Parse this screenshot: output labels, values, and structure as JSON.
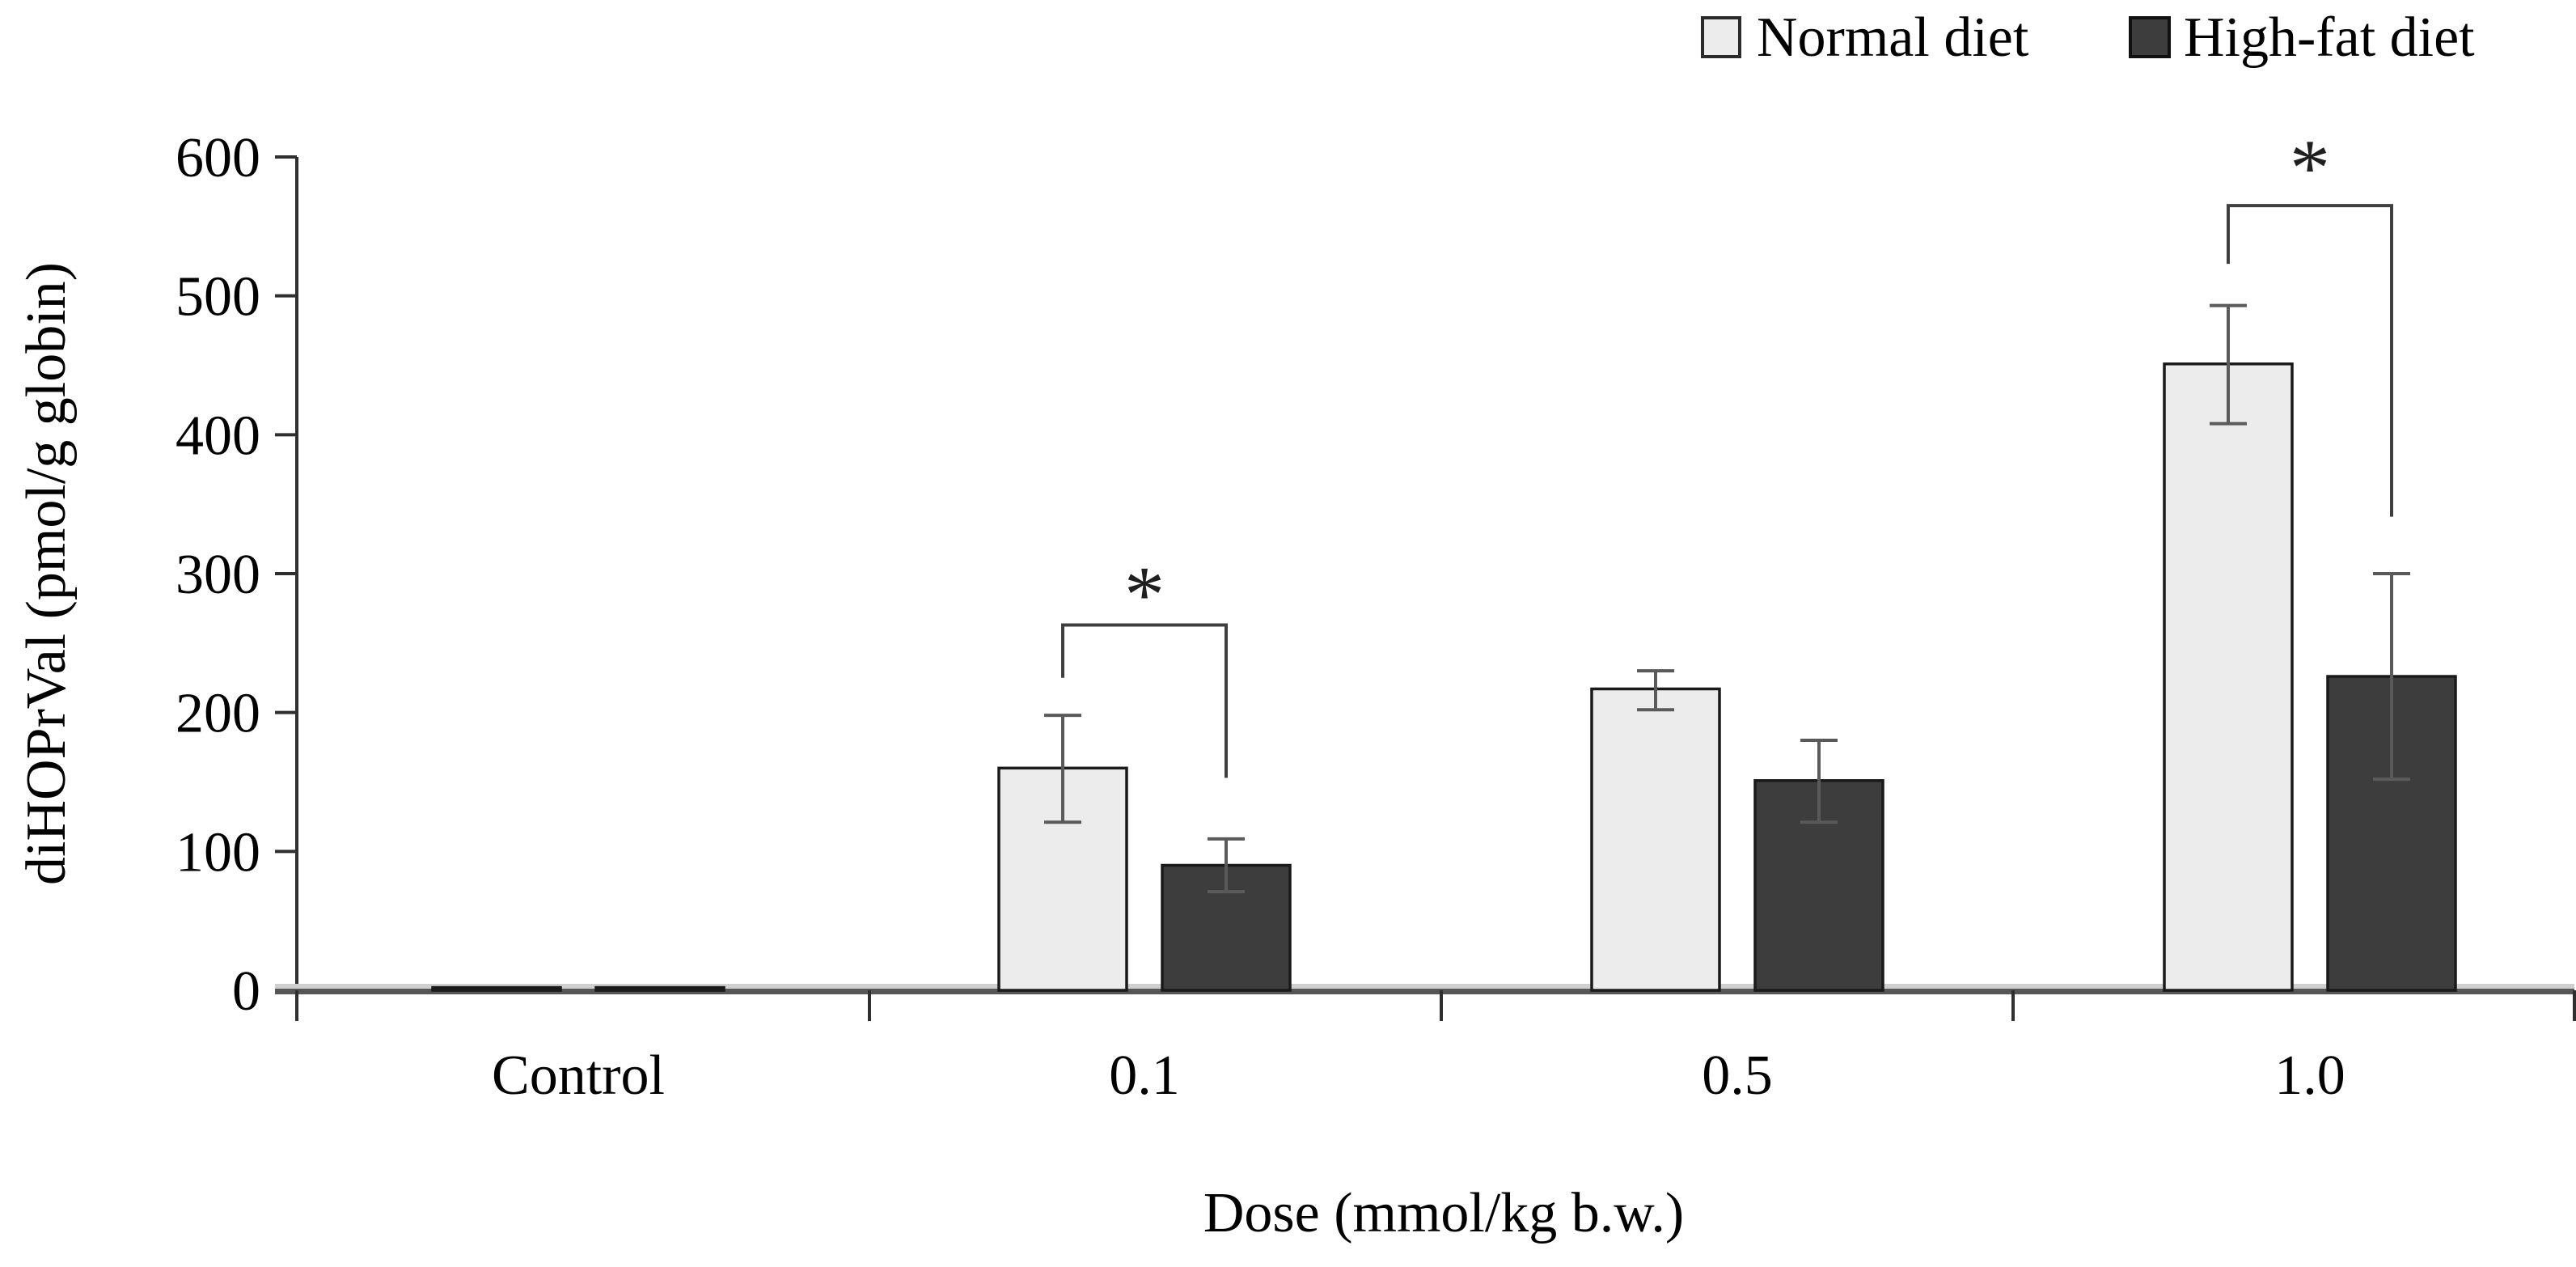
{
  "legend": {
    "items": [
      {
        "label": "Normal diet",
        "swatch_color": "#ececec",
        "swatch_border": "#2b2b2b"
      },
      {
        "label": "High-fat diet",
        "swatch_color": "#3d3d3d",
        "swatch_border": "#111111"
      }
    ]
  },
  "chart_data": {
    "type": "bar",
    "title": "",
    "xlabel": "Dose (mmol/kg b.w.)",
    "ylabel": "diHOPrVal (pmol/g globin)",
    "categories": [
      "Control",
      "0.1",
      "0.5",
      "1.0"
    ],
    "series": [
      {
        "name": "Normal diet",
        "values": [
          2,
          160,
          217,
          451
        ],
        "error_low": [
          0,
          39,
          15,
          43
        ],
        "error_high": [
          0,
          38,
          13,
          42
        ]
      },
      {
        "name": "High-fat diet",
        "values": [
          2,
          90,
          151,
          226
        ],
        "error_low": [
          0,
          19,
          30,
          74
        ],
        "error_high": [
          0,
          19,
          29,
          74
        ]
      }
    ],
    "ylim": [
      0,
      600
    ],
    "ytick_step": 100,
    "yticks": [
      0,
      100,
      200,
      300,
      400,
      500,
      600
    ],
    "ytick_labels": [
      "0",
      "100",
      "200",
      "300",
      "400",
      "500",
      "600"
    ],
    "grid": false,
    "legend_position": "top-right",
    "significance": [
      {
        "category": "0.1",
        "label": "*",
        "bracket_y": 263,
        "left_drop_to": 225,
        "right_drop_to": 153,
        "star_y": 285
      },
      {
        "category": "1.0",
        "label": "*",
        "bracket_y": 565,
        "left_drop_to": 523,
        "right_drop_to": 341,
        "star_y": 592
      }
    ]
  },
  "colors": {
    "normal_bar_fill": "#ececec",
    "highfat_bar_fill": "#3d3d3d",
    "bar_border": "#1a1a1a",
    "error_bar": "#5a5a5a",
    "bracket": "#3f3f3f",
    "axis_line": "#2f2f2f",
    "baseline_dark": "#565656",
    "baseline_light": "#cfcfcf",
    "text": "#000000",
    "background": "#ffffff"
  }
}
